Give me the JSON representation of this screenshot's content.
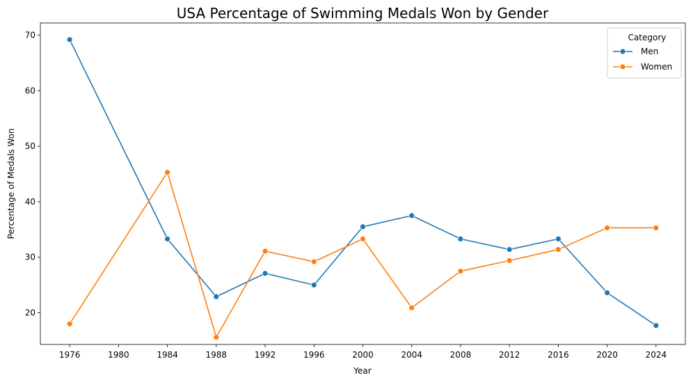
{
  "chart_data": {
    "type": "line",
    "title": "USA Percentage of Swimming Medals Won by Gender",
    "xlabel": "Year",
    "ylabel": "Percentage of Medals Won",
    "x": [
      1976,
      1984,
      1988,
      1992,
      1996,
      2000,
      2004,
      2008,
      2012,
      2016,
      2020,
      2024
    ],
    "x_ticks": [
      1976,
      1980,
      1984,
      1988,
      1992,
      1996,
      2000,
      2004,
      2008,
      2012,
      2016,
      2020,
      2024
    ],
    "y_ticks": [
      20,
      30,
      40,
      50,
      60,
      70
    ],
    "xlim": [
      1973.6,
      2026.4
    ],
    "ylim": [
      14.3,
      72.2
    ],
    "grid": false,
    "legend": {
      "title": "Category",
      "placement": "top-right"
    },
    "series": [
      {
        "name": "Men",
        "color": "#1f77b4",
        "values": [
          69.2,
          33.3,
          22.9,
          27.1,
          25.0,
          35.5,
          37.5,
          33.3,
          31.4,
          33.3,
          23.6,
          17.7
        ]
      },
      {
        "name": "Women",
        "color": "#ff7f0e",
        "values": [
          18.0,
          45.3,
          15.6,
          31.1,
          29.2,
          33.3,
          20.9,
          27.5,
          29.4,
          31.4,
          35.3,
          35.3
        ]
      }
    ]
  }
}
